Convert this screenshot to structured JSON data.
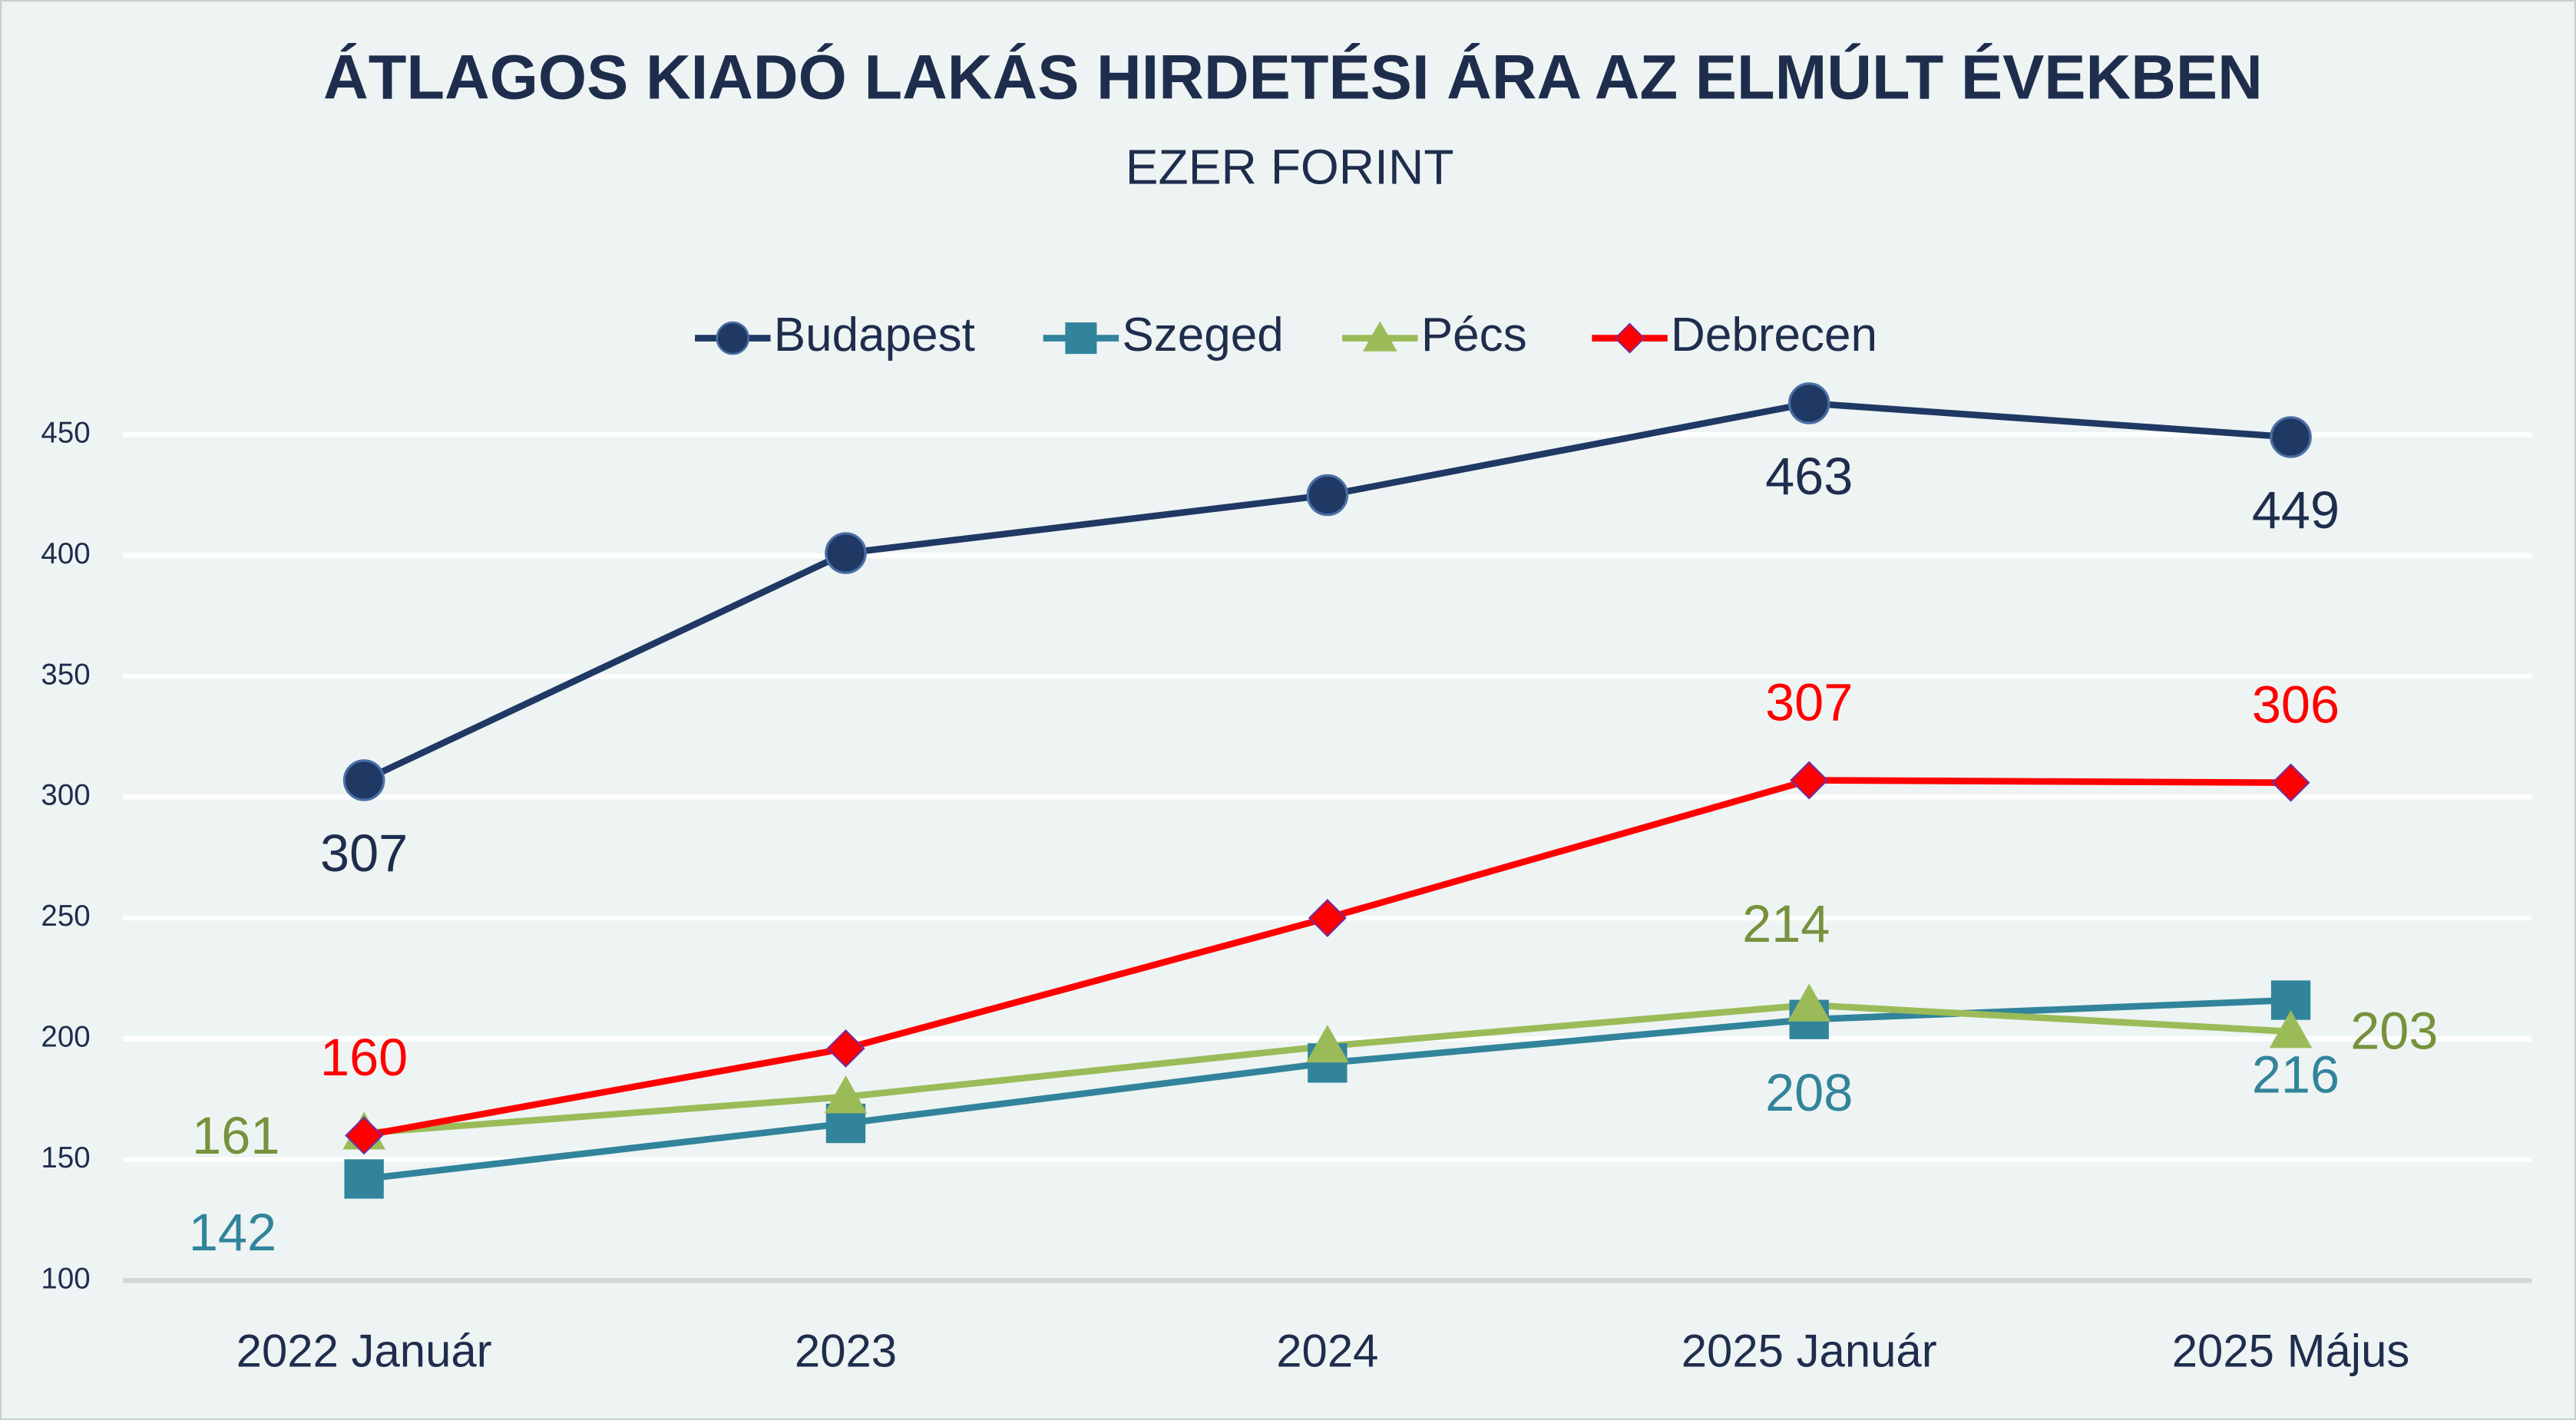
{
  "chart_data": {
    "type": "line",
    "title": "ÁTLAGOS  KIADÓ LAKÁS HIRDETÉSI ÁRA AZ ELMÚLT ÉVEKBEN",
    "subtitle": "EZER FORINT",
    "categories": [
      "2022 Január",
      "2023",
      "2024",
      "2025 Január",
      "2025 Május"
    ],
    "series": [
      {
        "name": "Budapest",
        "color": "#1f3864",
        "label_color": "#1f2d4d",
        "values": [
          307,
          401,
          425,
          463,
          449
        ],
        "value_labels": [
          307,
          null,
          null,
          463,
          449
        ]
      },
      {
        "name": "Szeged",
        "color": "#31849b",
        "label_color": "#31849b",
        "values": [
          142,
          165,
          190,
          208,
          216
        ],
        "value_labels": [
          142,
          null,
          null,
          208,
          216
        ]
      },
      {
        "name": "Pécs",
        "color": "#9bbb59",
        "label_color": "#76923c",
        "values": [
          161,
          176,
          197,
          214,
          203
        ],
        "value_labels": [
          161,
          null,
          null,
          214,
          203
        ]
      },
      {
        "name": "Debrecen",
        "color": "#ff0000",
        "label_color": "#ff0000",
        "values": [
          160,
          196,
          250,
          307,
          306
        ],
        "value_labels": [
          160,
          null,
          null,
          307,
          306
        ]
      }
    ],
    "ylim": [
      100,
      475
    ],
    "yticks": [
      100,
      150,
      200,
      250,
      300,
      350,
      400,
      450
    ],
    "grid": true,
    "legend": "top"
  }
}
